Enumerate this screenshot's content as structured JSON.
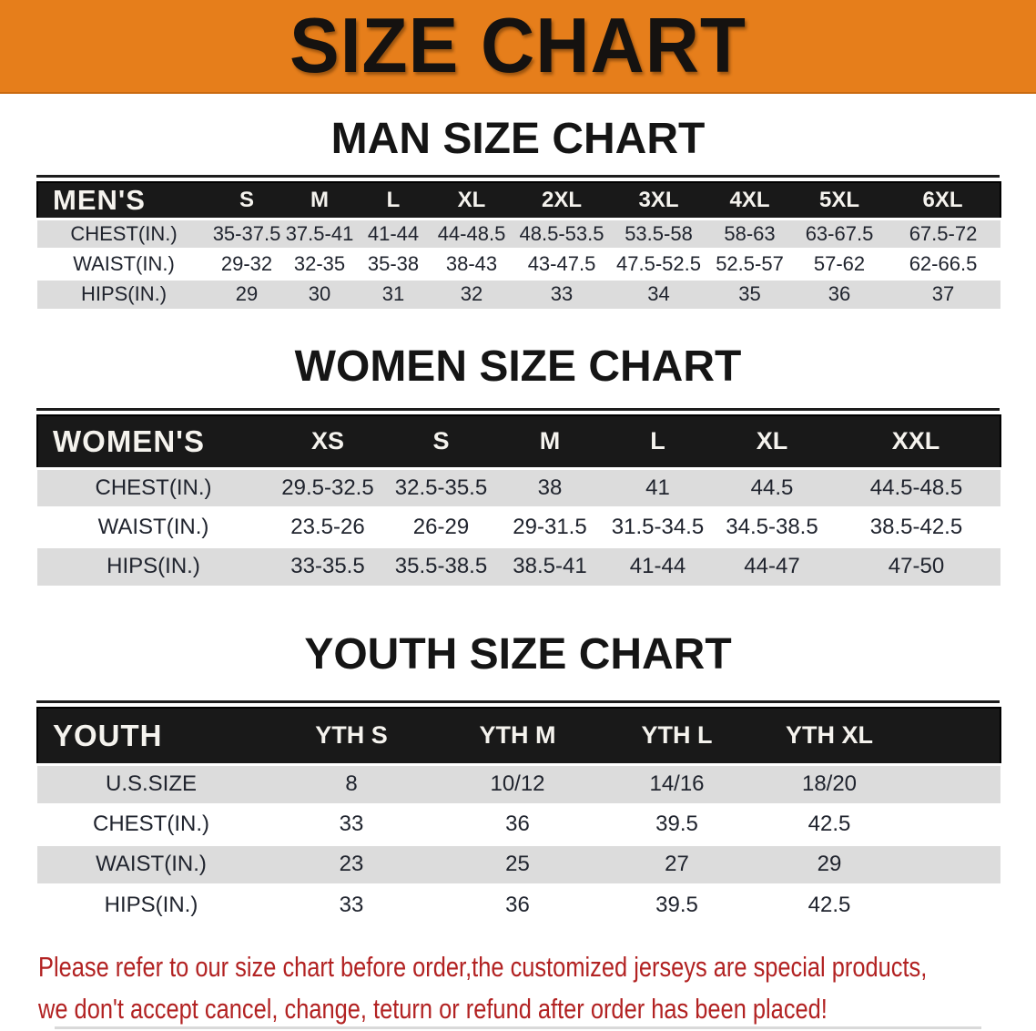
{
  "banner": {
    "title": "SIZE CHART"
  },
  "colors": {
    "banner_bg": "#E67E1B",
    "band_bg": "#191919",
    "row_alt_bg": "#DCDCDC",
    "heading_text": "#151515",
    "disclaimer_text": "#B22222"
  },
  "sections": [
    {
      "heading": "MAN SIZE CHART",
      "table": {
        "header_label": "MEN'S",
        "columns": [
          "S",
          "M",
          "L",
          "XL",
          "2XL",
          "3XL",
          "4XL",
          "5XL",
          "6XL"
        ],
        "rows": [
          {
            "label": "CHEST(IN.)",
            "values": [
              "35-37.5",
              "37.5-41",
              "41-44",
              "44-48.5",
              "48.5-53.5",
              "53.5-58",
              "58-63",
              "63-67.5",
              "67.5-72"
            ]
          },
          {
            "label": "WAIST(IN.)",
            "values": [
              "29-32",
              "32-35",
              "35-38",
              "38-43",
              "43-47.5",
              "47.5-52.5",
              "52.5-57",
              "57-62",
              "62-66.5"
            ]
          },
          {
            "label": "HIPS(IN.)",
            "values": [
              "29",
              "30",
              "31",
              "32",
              "33",
              "34",
              "35",
              "36",
              "37"
            ]
          }
        ]
      }
    },
    {
      "heading": "WOMEN SIZE CHART",
      "table": {
        "header_label": "WOMEN'S",
        "columns": [
          "XS",
          "S",
          "M",
          "L",
          "XL",
          "XXL"
        ],
        "rows": [
          {
            "label": "CHEST(IN.)",
            "values": [
              "29.5-32.5",
              "32.5-35.5",
              "38",
              "41",
              "44.5",
              "44.5-48.5"
            ]
          },
          {
            "label": "WAIST(IN.)",
            "values": [
              "23.5-26",
              "26-29",
              "29-31.5",
              "31.5-34.5",
              "34.5-38.5",
              "38.5-42.5"
            ]
          },
          {
            "label": "HIPS(IN.)",
            "values": [
              "33-35.5",
              "35.5-38.5",
              "38.5-41",
              "41-44",
              "44-47",
              "47-50"
            ]
          }
        ]
      }
    },
    {
      "heading": "YOUTH SIZE CHART",
      "table": {
        "header_label": "YOUTH",
        "columns": [
          "YTH S",
          "YTH M",
          "YTH L",
          "YTH XL"
        ],
        "rows": [
          {
            "label": "U.S.SIZE",
            "values": [
              "8",
              "10/12",
              "14/16",
              "18/20"
            ]
          },
          {
            "label": "CHEST(IN.)",
            "values": [
              "33",
              "36",
              "39.5",
              "42.5"
            ]
          },
          {
            "label": "WAIST(IN.)",
            "values": [
              "23",
              "25",
              "27",
              "29"
            ]
          },
          {
            "label": "HIPS(IN.)",
            "values": [
              "33",
              "36",
              "39.5",
              "42.5"
            ]
          }
        ]
      }
    }
  ],
  "disclaimer": {
    "line1": "Please refer to our size chart before order,the customized jerseys are special products,",
    "line2": "we don't accept cancel, change, teturn or refund after order has been placed!"
  }
}
